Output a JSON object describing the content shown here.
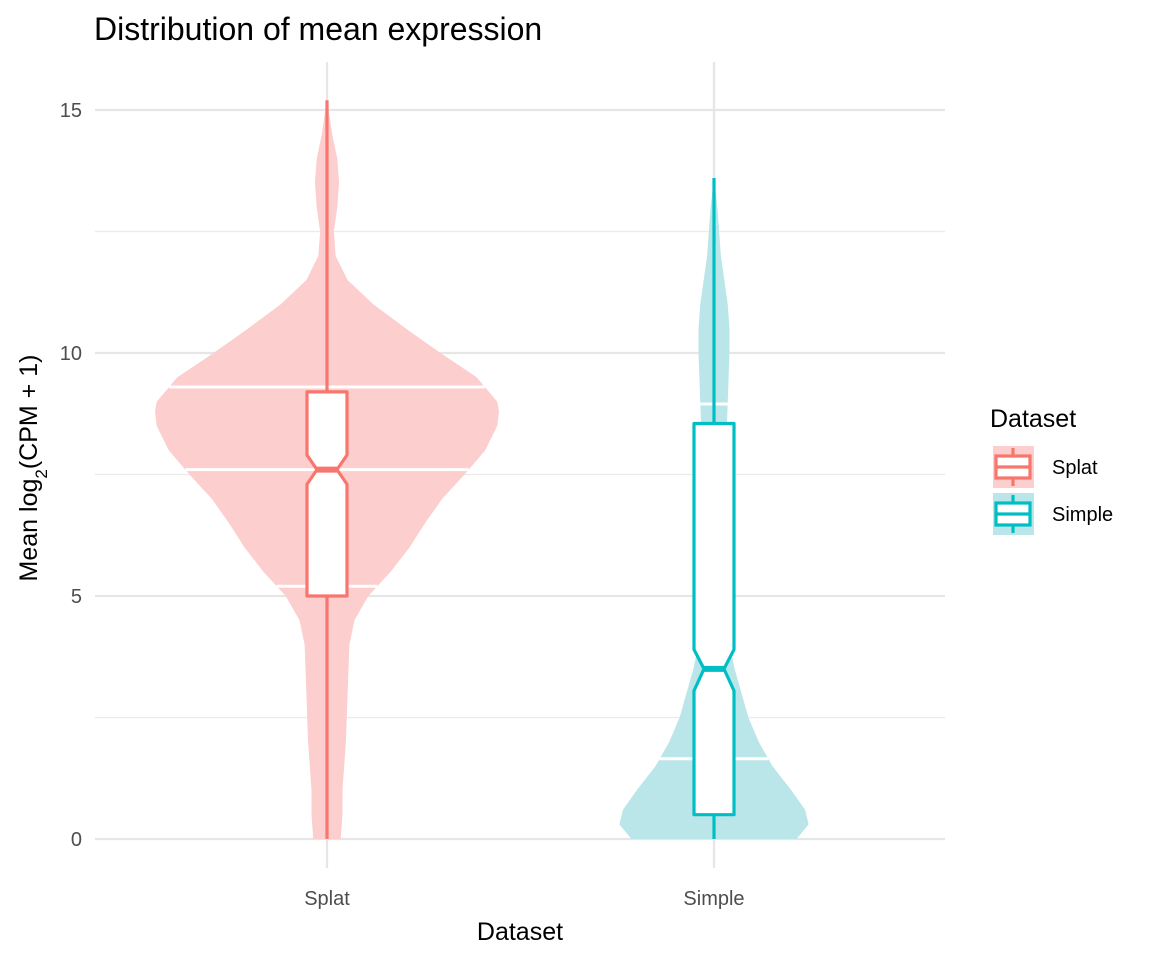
{
  "chart_data": {
    "type": "violin",
    "title": "Distribution of mean expression",
    "xlabel": "Dataset",
    "ylabel_main": "Mean log",
    "ylabel_sub": "2",
    "ylabel_rest": "(CPM + 1)",
    "ylim": [
      -0.6,
      15.9
    ],
    "y_ticks": [
      0,
      5,
      10,
      15
    ],
    "y_tick_labels": [
      "0",
      "5",
      "10",
      "15"
    ],
    "y_minor_ticks": [
      2.5,
      7.5,
      12.5
    ],
    "categories": [
      "Splat",
      "Simple"
    ],
    "grid": true,
    "legend": {
      "title": "Dataset",
      "position": "right",
      "entries": [
        "Splat",
        "Simple"
      ]
    },
    "series": [
      {
        "name": "Splat",
        "color": "#F8766D",
        "fill": "#FCCECE",
        "violin_quantiles": [
          5.2,
          7.6,
          9.3
        ],
        "violin_profile": [
          [
            0.0,
            0.08
          ],
          [
            0.5,
            0.09
          ],
          [
            1.0,
            0.09
          ],
          [
            2.0,
            0.11
          ],
          [
            3.0,
            0.12
          ],
          [
            4.0,
            0.13
          ],
          [
            4.5,
            0.16
          ],
          [
            5.0,
            0.24
          ],
          [
            5.5,
            0.37
          ],
          [
            6.0,
            0.48
          ],
          [
            6.5,
            0.57
          ],
          [
            7.0,
            0.67
          ],
          [
            7.5,
            0.8
          ],
          [
            8.0,
            0.92
          ],
          [
            8.5,
            0.99
          ],
          [
            8.8,
            1.0
          ],
          [
            9.0,
            0.99
          ],
          [
            9.5,
            0.87
          ],
          [
            10.0,
            0.66
          ],
          [
            10.5,
            0.46
          ],
          [
            11.0,
            0.27
          ],
          [
            11.5,
            0.12
          ],
          [
            12.0,
            0.05
          ],
          [
            12.5,
            0.04
          ],
          [
            13.0,
            0.06
          ],
          [
            13.5,
            0.07
          ],
          [
            14.0,
            0.06
          ],
          [
            14.5,
            0.03
          ],
          [
            15.0,
            0.01
          ],
          [
            15.2,
            0.0
          ]
        ],
        "box": {
          "whisker_low": 0,
          "q1": 5.0,
          "median": 7.6,
          "q3": 9.2,
          "whisker_high": 15.2,
          "notch_low": 7.3,
          "notch_high": 7.9
        }
      },
      {
        "name": "Simple",
        "color": "#00BFC4",
        "fill": "#BAE6E9",
        "violin_quantiles": [
          1.65,
          4.85,
          8.95
        ],
        "violin_profile": [
          [
            0.0,
            0.48
          ],
          [
            0.3,
            0.55
          ],
          [
            0.6,
            0.53
          ],
          [
            1.0,
            0.45
          ],
          [
            1.5,
            0.34
          ],
          [
            2.0,
            0.26
          ],
          [
            2.5,
            0.2
          ],
          [
            3.0,
            0.16
          ],
          [
            3.5,
            0.12
          ],
          [
            4.0,
            0.09
          ],
          [
            4.5,
            0.07
          ],
          [
            5.0,
            0.06
          ],
          [
            6.0,
            0.06
          ],
          [
            7.0,
            0.06
          ],
          [
            8.0,
            0.07
          ],
          [
            9.0,
            0.08
          ],
          [
            10.0,
            0.09
          ],
          [
            10.5,
            0.09
          ],
          [
            11.0,
            0.08
          ],
          [
            11.5,
            0.06
          ],
          [
            12.0,
            0.04
          ],
          [
            12.5,
            0.03
          ],
          [
            13.0,
            0.02
          ],
          [
            13.6,
            0.0
          ]
        ],
        "box": {
          "whisker_low": 0,
          "q1": 0.5,
          "median": 3.5,
          "q3": 8.55,
          "whisker_high": 13.6,
          "notch_low": 3.05,
          "notch_high": 3.9
        }
      }
    ]
  }
}
